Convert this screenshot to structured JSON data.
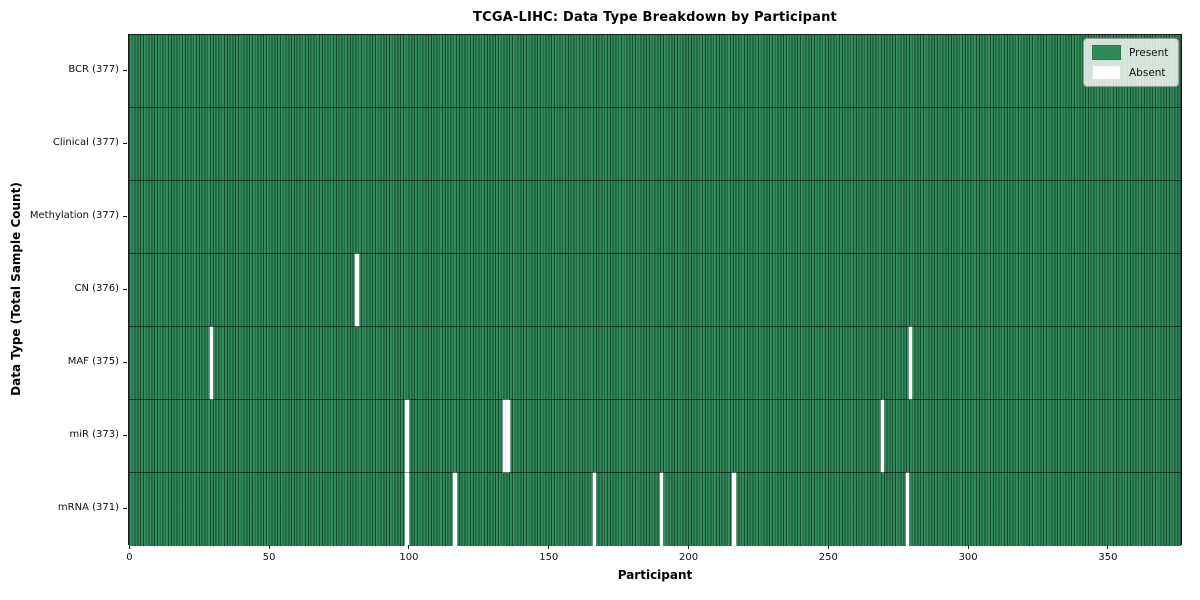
{
  "figure": {
    "title": "TCGA-LIHC: Data Type Breakdown by Participant",
    "xlabel": "Participant",
    "ylabel": "Data Type (Total Sample Count)"
  },
  "legend": {
    "items": [
      {
        "label": "Present",
        "color": "#2e8b57"
      },
      {
        "label": "Absent",
        "color": "#ffffff"
      }
    ]
  },
  "chart_data": {
    "type": "heatmap",
    "title": "TCGA-LIHC: Data Type Breakdown by Participant",
    "xlabel": "Participant",
    "ylabel": "Data Type (Total Sample Count)",
    "n_participants": 377,
    "xlim": [
      -0.5,
      376.5
    ],
    "x_ticks": [
      0,
      50,
      100,
      150,
      200,
      250,
      300,
      350
    ],
    "value_encoding": {
      "present": 1,
      "absent": 0
    },
    "colors": {
      "present": "#2e8b57",
      "absent": "#ffffff",
      "cell_edge": "rgba(0,30,15,0.55)"
    },
    "legend_position": "upper right",
    "grid": false,
    "rows": [
      {
        "label": "BCR (377)",
        "data_type": "BCR",
        "total_samples": 377,
        "absent_participants": []
      },
      {
        "label": "Clinical (377)",
        "data_type": "Clinical",
        "total_samples": 377,
        "absent_participants": []
      },
      {
        "label": "Methylation (377)",
        "data_type": "Methylation",
        "total_samples": 377,
        "absent_participants": []
      },
      {
        "label": "CN (376)",
        "data_type": "CN",
        "total_samples": 376,
        "absent_participants": [
          81
        ]
      },
      {
        "label": "MAF (375)",
        "data_type": "MAF",
        "total_samples": 375,
        "absent_participants": [
          29,
          279
        ]
      },
      {
        "label": "miR (373)",
        "data_type": "miR",
        "total_samples": 373,
        "absent_participants": [
          99,
          134,
          135,
          269
        ]
      },
      {
        "label": "mRNA (371)",
        "data_type": "mRNA",
        "total_samples": 371,
        "absent_participants": [
          99,
          116,
          166,
          190,
          216,
          278
        ]
      }
    ]
  }
}
